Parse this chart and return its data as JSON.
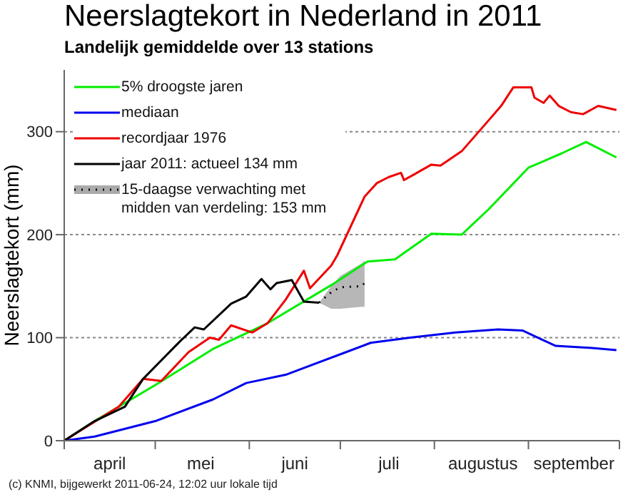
{
  "chart_data": {
    "type": "line",
    "title": "Neerslagtekort in Nederland in 2011",
    "subtitle": "Landelijk gemiddelde over 13 stations",
    "ylabel": "Neerslagtekort (mm)",
    "xlim": [
      "2011-04-01",
      "2011-10-01"
    ],
    "xticks": [
      {
        "value": "2011-04-01",
        "label": null
      },
      {
        "value": "2011-04-16",
        "label": "april"
      },
      {
        "value": "2011-05-01",
        "label": null
      },
      {
        "value": "2011-05-16",
        "label": "mei"
      },
      {
        "value": "2011-06-01",
        "label": null
      },
      {
        "value": "2011-06-16",
        "label": "juni"
      },
      {
        "value": "2011-07-01",
        "label": null
      },
      {
        "value": "2011-07-17",
        "label": "juli"
      },
      {
        "value": "2011-08-01",
        "label": null
      },
      {
        "value": "2011-08-17",
        "label": "augustus"
      },
      {
        "value": "2011-09-01",
        "label": null
      },
      {
        "value": "2011-09-16",
        "label": "september"
      },
      {
        "value": "2011-10-01",
        "label": null
      }
    ],
    "ylim": [
      0,
      360
    ],
    "yticks": [
      0,
      100,
      200,
      300
    ],
    "grid": "y",
    "legend": "top left",
    "line_style": "solid",
    "series": [
      {
        "name": "5% droogste jaren",
        "color": "#00ee00",
        "x": [
          "2011-04-01",
          "2011-04-11",
          "2011-05-01",
          "2011-05-20",
          "2011-06-07",
          "2011-06-28",
          "2011-07-10",
          "2011-07-19",
          "2011-07-31",
          "2011-08-10",
          "2011-08-19",
          "2011-09-01",
          "2011-09-12",
          "2011-09-20",
          "2011-09-30"
        ],
        "values": [
          0,
          19,
          54,
          89,
          114,
          151,
          174,
          176,
          201,
          200,
          225,
          265,
          279,
          290,
          275
        ]
      },
      {
        "name": "mediaan",
        "color": "#0000ee",
        "x": [
          "2011-04-01",
          "2011-04-11",
          "2011-05-01",
          "2011-05-20",
          "2011-05-31",
          "2011-06-13",
          "2011-07-02",
          "2011-07-11",
          "2011-07-24",
          "2011-08-08",
          "2011-08-22",
          "2011-08-30",
          "2011-09-10",
          "2011-09-22",
          "2011-09-30"
        ],
        "values": [
          0,
          4,
          19,
          40,
          56,
          64,
          85,
          95,
          100,
          105,
          108,
          107,
          92,
          90,
          88
        ]
      },
      {
        "name": "recordjaar 1976",
        "color": "#ee0000",
        "x": [
          "2011-04-01",
          "2011-04-19",
          "2011-04-27",
          "2011-05-03",
          "2011-05-12",
          "2011-05-19",
          "2011-05-22",
          "2011-05-26",
          "2011-06-02",
          "2011-06-07",
          "2011-06-13",
          "2011-06-19",
          "2011-06-21",
          "2011-06-28",
          "2011-06-30",
          "2011-07-09",
          "2011-07-13",
          "2011-07-17",
          "2011-07-21",
          "2011-07-22",
          "2011-07-25",
          "2011-07-31",
          "2011-08-03",
          "2011-08-10",
          "2011-08-18",
          "2011-08-23",
          "2011-08-27",
          "2011-09-02",
          "2011-09-03",
          "2011-09-06",
          "2011-09-08",
          "2011-09-11",
          "2011-09-15",
          "2011-09-19",
          "2011-09-24",
          "2011-09-30"
        ],
        "values": [
          0,
          33,
          60,
          58,
          86,
          100,
          98,
          112,
          105,
          114,
          137,
          165,
          148,
          170,
          180,
          237,
          250,
          256,
          260,
          253,
          258,
          268,
          267,
          281,
          308,
          325,
          343,
          343,
          333,
          328,
          335,
          325,
          319,
          317,
          325,
          321
        ]
      },
      {
        "name": "jaar 2011: actueel 134 mm",
        "color": "#000000",
        "x": [
          "2011-04-01",
          "2011-04-11",
          "2011-04-21",
          "2011-04-27",
          "2011-05-09",
          "2011-05-14",
          "2011-05-17",
          "2011-05-26",
          "2011-05-31",
          "2011-06-05",
          "2011-06-08",
          "2011-06-10",
          "2011-06-15",
          "2011-06-19",
          "2011-06-24"
        ],
        "values": [
          0,
          19,
          33,
          60,
          96,
          110,
          108,
          133,
          140,
          157,
          147,
          153,
          156,
          135,
          134
        ]
      },
      {
        "name": "15-daagse verwachting met midden van verdeling: 153 mm",
        "color": "#000000",
        "line_style": "dotted",
        "x": [
          "2011-06-24",
          "2011-06-28",
          "2011-07-01",
          "2011-07-08",
          "2011-07-09"
        ],
        "values": [
          134,
          144,
          149,
          150,
          153
        ],
        "lower": [
          134,
          128,
          128,
          130,
          130
        ],
        "upper": [
          134,
          150,
          160,
          172,
          175
        ]
      }
    ],
    "annotations": [
      "(c) KNMI, bijgewerkt 2011-06-24, 12:02 uur lokale tijd"
    ]
  }
}
